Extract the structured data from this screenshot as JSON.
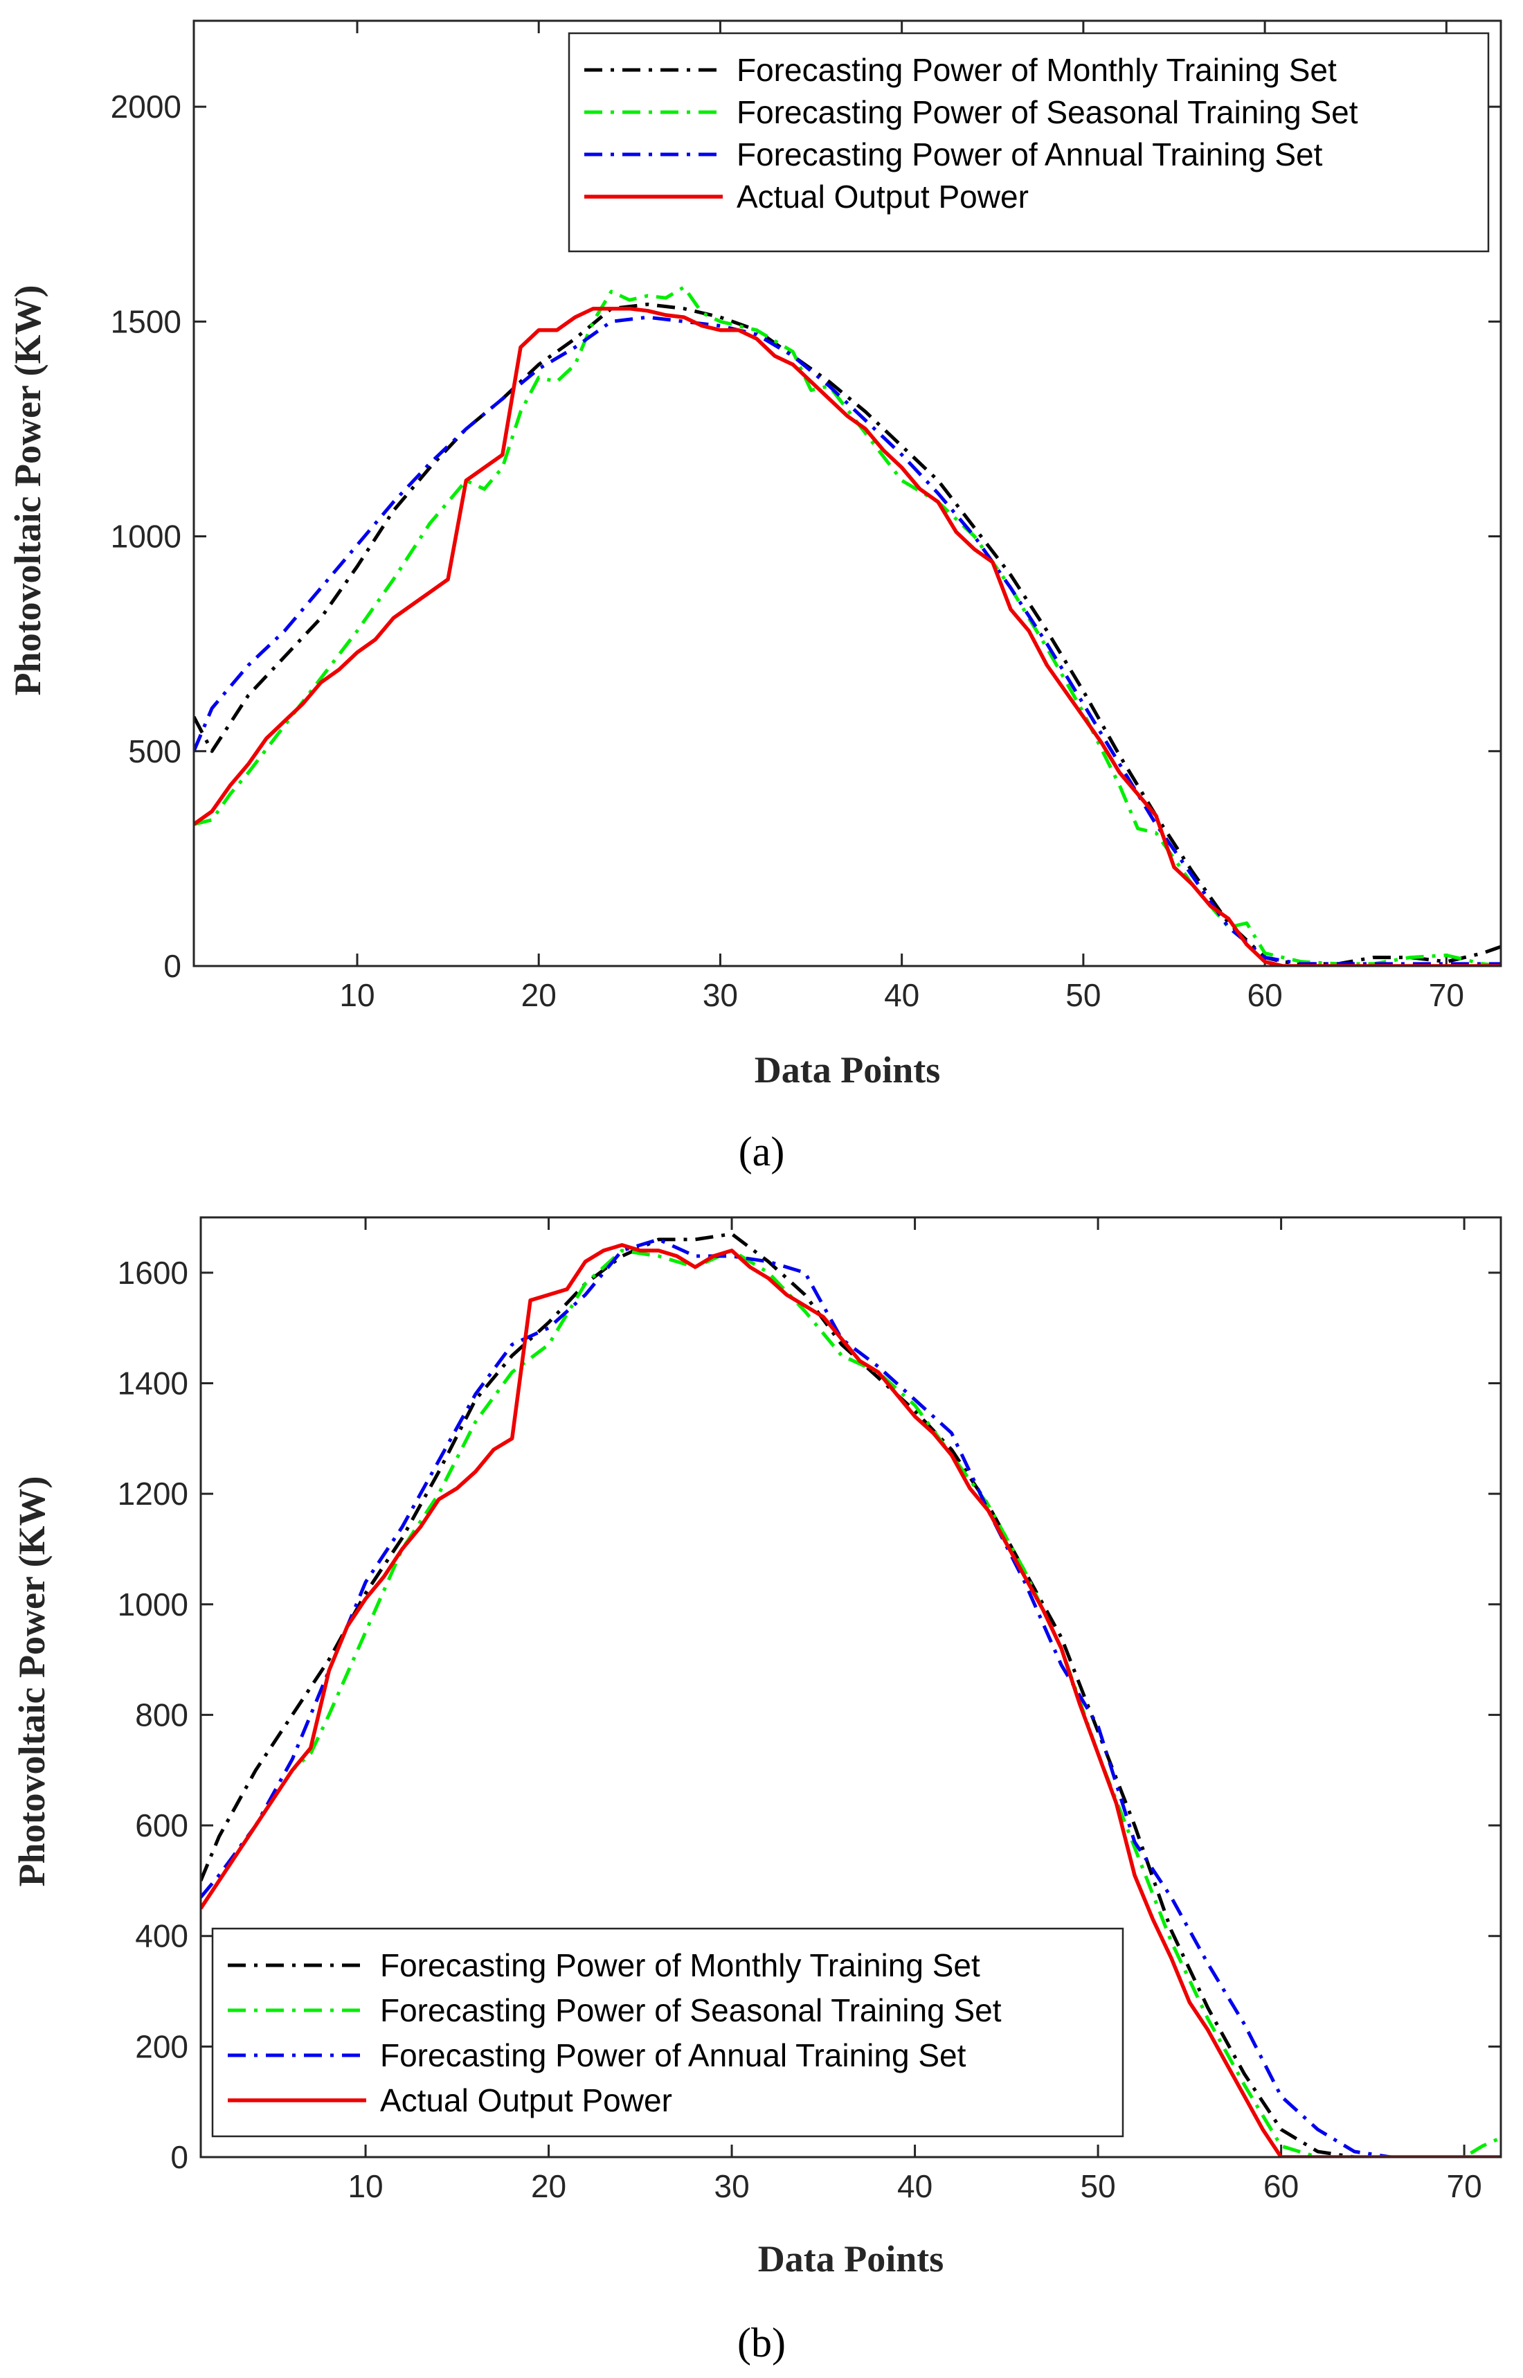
{
  "colors": {
    "monthly": "#000000",
    "seasonal": "#00ee00",
    "annual": "#0000ee",
    "actual": "#ee0000",
    "axis": "#262626"
  },
  "chart_data": [
    {
      "type": "line",
      "panel_label": "(a)",
      "xlabel": "Data Points",
      "ylabel": "Photovoltaic Power (KW)",
      "xlim": [
        1,
        73
      ],
      "ylim": [
        0,
        2200
      ],
      "xticks": [
        10,
        20,
        30,
        40,
        50,
        60,
        70
      ],
      "yticks": [
        0,
        500,
        1000,
        1500,
        2000
      ],
      "legend_position": "top-right",
      "series": [
        {
          "name": "Forecasting Power of Monthly Training Set",
          "color_key": "monthly",
          "style": "dashdot",
          "x": [
            1,
            2,
            4,
            6,
            8,
            10,
            12,
            14,
            16,
            18,
            20,
            22,
            24,
            26,
            28,
            30,
            32,
            34,
            36,
            38,
            40,
            42,
            44,
            46,
            48,
            50,
            52,
            54,
            56,
            58,
            60,
            61,
            62,
            64,
            66,
            68,
            70,
            72,
            73
          ],
          "y": [
            580,
            500,
            630,
            720,
            810,
            930,
            1060,
            1160,
            1250,
            1320,
            1400,
            1460,
            1530,
            1540,
            1530,
            1510,
            1480,
            1420,
            1360,
            1290,
            1210,
            1130,
            1020,
            910,
            780,
            640,
            490,
            350,
            220,
            100,
            20,
            10,
            5,
            5,
            20,
            20,
            10,
            30,
            45
          ]
        },
        {
          "name": "Forecasting Power of Seasonal Training Set",
          "color_key": "seasonal",
          "style": "dashdot",
          "x": [
            1,
            2,
            3,
            4,
            6,
            8,
            10,
            12,
            14,
            15,
            16,
            17,
            18,
            19,
            20,
            21,
            22,
            23,
            24,
            25,
            26,
            27,
            28,
            29,
            30,
            32,
            34,
            35,
            36,
            38,
            40,
            42,
            44,
            46,
            48,
            50,
            52,
            53,
            54,
            56,
            58,
            59,
            60,
            62,
            64,
            66,
            68,
            70,
            72,
            73
          ],
          "y": [
            330,
            340,
            400,
            450,
            560,
            670,
            780,
            900,
            1030,
            1080,
            1130,
            1110,
            1160,
            1290,
            1370,
            1360,
            1400,
            1500,
            1570,
            1550,
            1560,
            1555,
            1580,
            1520,
            1500,
            1480,
            1430,
            1340,
            1350,
            1240,
            1130,
            1080,
            1000,
            880,
            740,
            590,
            420,
            320,
            310,
            190,
            90,
            100,
            30,
            10,
            5,
            5,
            20,
            25,
            5,
            0
          ]
        },
        {
          "name": "Forecasting Power of Annual Training Set",
          "color_key": "annual",
          "style": "dashdot",
          "x": [
            1,
            2,
            4,
            6,
            8,
            10,
            12,
            14,
            16,
            18,
            20,
            22,
            24,
            26,
            28,
            30,
            32,
            34,
            36,
            38,
            40,
            42,
            44,
            46,
            48,
            50,
            52,
            54,
            56,
            58,
            60,
            62,
            64,
            66,
            68,
            70,
            72,
            73
          ],
          "y": [
            500,
            600,
            700,
            780,
            880,
            980,
            1080,
            1170,
            1250,
            1320,
            1390,
            1440,
            1500,
            1510,
            1500,
            1490,
            1470,
            1420,
            1350,
            1270,
            1190,
            1100,
            1000,
            880,
            750,
            610,
            470,
            330,
            210,
            90,
            20,
            5,
            5,
            5,
            5,
            5,
            5,
            5
          ]
        },
        {
          "name": "Actual Output Power",
          "color_key": "actual",
          "style": "solid",
          "x": [
            1,
            2,
            3,
            4,
            5,
            6,
            7,
            8,
            9,
            10,
            11,
            12,
            13,
            14,
            15,
            16,
            17,
            18,
            19,
            20,
            21,
            22,
            23,
            24,
            25,
            26,
            27,
            28,
            29,
            30,
            31,
            32,
            33,
            34,
            35,
            36,
            37,
            38,
            39,
            40,
            41,
            42,
            43,
            44,
            45,
            46,
            47,
            48,
            49,
            50,
            51,
            52,
            53,
            54,
            55,
            56,
            57,
            58,
            59,
            60,
            61,
            62,
            64,
            66,
            68,
            70,
            72,
            73
          ],
          "y": [
            330,
            360,
            420,
            470,
            530,
            570,
            610,
            660,
            690,
            730,
            760,
            810,
            840,
            870,
            900,
            1130,
            1160,
            1190,
            1440,
            1480,
            1480,
            1510,
            1530,
            1530,
            1530,
            1525,
            1515,
            1510,
            1490,
            1480,
            1480,
            1460,
            1420,
            1400,
            1360,
            1320,
            1280,
            1250,
            1200,
            1160,
            1110,
            1080,
            1010,
            970,
            940,
            830,
            780,
            700,
            640,
            580,
            520,
            450,
            400,
            350,
            230,
            190,
            140,
            110,
            50,
            10,
            0,
            0,
            0,
            0,
            0,
            0,
            0,
            0
          ]
        }
      ]
    },
    {
      "type": "line",
      "panel_label": "(b)",
      "xlabel": "Data Points",
      "ylabel": "Photovoltaic Power (KW)",
      "xlim": [
        1,
        72
      ],
      "ylim": [
        0,
        1700
      ],
      "xticks": [
        10,
        20,
        30,
        40,
        50,
        60,
        70
      ],
      "yticks": [
        0,
        200,
        400,
        600,
        800,
        1000,
        1200,
        1400,
        1600
      ],
      "legend_position": "bottom-left",
      "series": [
        {
          "name": "Forecasting Power of Monthly Training Set",
          "color_key": "monthly",
          "style": "dashdot",
          "x": [
            1,
            2,
            4,
            6,
            8,
            10,
            12,
            14,
            16,
            18,
            20,
            22,
            24,
            26,
            28,
            30,
            32,
            34,
            36,
            38,
            40,
            42,
            44,
            46,
            48,
            50,
            52,
            54,
            56,
            58,
            60,
            62,
            64,
            66,
            68,
            70,
            72
          ],
          "y": [
            500,
            580,
            700,
            800,
            900,
            1020,
            1120,
            1240,
            1370,
            1450,
            1510,
            1580,
            1630,
            1660,
            1660,
            1670,
            1620,
            1560,
            1470,
            1410,
            1350,
            1280,
            1180,
            1060,
            940,
            770,
            600,
            410,
            270,
            150,
            50,
            10,
            0,
            0,
            0,
            0,
            0
          ]
        },
        {
          "name": "Forecasting Power of Seasonal Training Set",
          "color_key": "seasonal",
          "style": "dashdot",
          "x": [
            1,
            2,
            4,
            6,
            7,
            8,
            10,
            12,
            14,
            16,
            18,
            20,
            22,
            24,
            26,
            28,
            30,
            32,
            34,
            36,
            38,
            40,
            42,
            44,
            46,
            48,
            50,
            52,
            54,
            56,
            58,
            60,
            62,
            64,
            66,
            68,
            70,
            71,
            72
          ],
          "y": [
            450,
            500,
            600,
            700,
            730,
            800,
            950,
            1100,
            1200,
            1330,
            1420,
            1470,
            1580,
            1640,
            1630,
            1610,
            1640,
            1600,
            1530,
            1450,
            1420,
            1360,
            1270,
            1180,
            1060,
            920,
            730,
            560,
            390,
            250,
            130,
            20,
            0,
            0,
            0,
            0,
            0,
            20,
            35
          ]
        },
        {
          "name": "Forecasting Power of Annual Training Set",
          "color_key": "annual",
          "style": "dashdot",
          "x": [
            1,
            2,
            4,
            6,
            8,
            10,
            12,
            14,
            16,
            18,
            20,
            22,
            24,
            26,
            28,
            30,
            32,
            34,
            36,
            38,
            40,
            42,
            44,
            46,
            48,
            50,
            52,
            54,
            56,
            58,
            60,
            62,
            64,
            66,
            68,
            70,
            72
          ],
          "y": [
            470,
            510,
            600,
            720,
            880,
            1040,
            1140,
            1260,
            1380,
            1470,
            1500,
            1560,
            1640,
            1660,
            1630,
            1630,
            1620,
            1600,
            1480,
            1430,
            1370,
            1310,
            1170,
            1040,
            890,
            780,
            570,
            470,
            350,
            240,
            110,
            50,
            10,
            0,
            0,
            0,
            0
          ]
        },
        {
          "name": "Actual Output Power",
          "color_key": "actual",
          "style": "solid",
          "x": [
            1,
            2,
            3,
            4,
            5,
            6,
            7,
            8,
            9,
            10,
            11,
            12,
            13,
            14,
            15,
            16,
            17,
            18,
            19,
            20,
            21,
            22,
            23,
            24,
            25,
            26,
            27,
            28,
            29,
            30,
            31,
            32,
            33,
            34,
            35,
            36,
            37,
            38,
            39,
            40,
            41,
            42,
            43,
            44,
            45,
            46,
            47,
            48,
            49,
            50,
            51,
            52,
            53,
            54,
            55,
            56,
            57,
            58,
            59,
            60,
            62,
            64,
            66,
            68,
            70,
            72
          ],
          "y": [
            450,
            500,
            550,
            600,
            650,
            700,
            740,
            880,
            960,
            1010,
            1050,
            1100,
            1140,
            1190,
            1210,
            1240,
            1280,
            1300,
            1550,
            1560,
            1570,
            1620,
            1640,
            1650,
            1640,
            1640,
            1630,
            1610,
            1630,
            1640,
            1610,
            1590,
            1560,
            1540,
            1520,
            1480,
            1440,
            1420,
            1380,
            1340,
            1310,
            1270,
            1210,
            1170,
            1110,
            1050,
            990,
            920,
            820,
            730,
            640,
            510,
            430,
            360,
            280,
            230,
            170,
            110,
            50,
            0,
            0,
            0,
            0,
            0,
            0,
            0
          ]
        }
      ]
    }
  ]
}
